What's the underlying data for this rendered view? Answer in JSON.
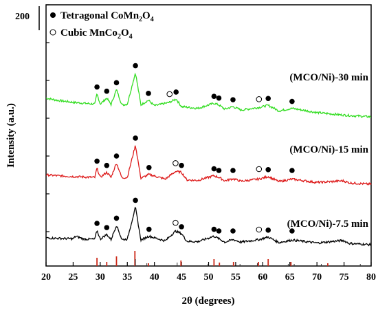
{
  "chart_data": {
    "type": "line",
    "xlabel": "2θ (degrees)",
    "ylabel": "Intensity (a.u.)",
    "xlim": [
      20,
      80
    ],
    "x_ticks": [
      20,
      25,
      30,
      35,
      40,
      45,
      50,
      55,
      60,
      65,
      70,
      75,
      80
    ],
    "scale_label": "200",
    "legend": {
      "placement": "top-left",
      "entries": [
        {
          "marker": "filled-circle",
          "name": "Tetragonal CoMn",
          "sub1": "2",
          "mid": "O",
          "sub2": "4"
        },
        {
          "marker": "open-circle",
          "name": "Cubic MnCo",
          "sub1": "2",
          "mid": "O",
          "sub2": "4"
        }
      ]
    },
    "series": [
      {
        "name": "(MCO/Ni)-30 min",
        "color": "#33dd22",
        "peaks_filled": [
          29.4,
          31.2,
          33.0,
          36.5,
          38.9,
          44.0,
          51.0,
          51.9,
          54.5,
          61.0,
          65.4
        ],
        "peaks_open": [
          42.8,
          59.3
        ],
        "points": [
          [
            20,
            180
          ],
          [
            22,
            175
          ],
          [
            25,
            170
          ],
          [
            27,
            168
          ],
          [
            29,
            166
          ],
          [
            29.4,
            190
          ],
          [
            30,
            166
          ],
          [
            31.2,
            180
          ],
          [
            32,
            165
          ],
          [
            33,
            200
          ],
          [
            34,
            164
          ],
          [
            35,
            166
          ],
          [
            36.5,
            240
          ],
          [
            37.5,
            164
          ],
          [
            38.9,
            175
          ],
          [
            40,
            162
          ],
          [
            42.8,
            170
          ],
          [
            44,
            178
          ],
          [
            45,
            160
          ],
          [
            48,
            156
          ],
          [
            51,
            168
          ],
          [
            51.9,
            164
          ],
          [
            53,
            154
          ],
          [
            54.5,
            160
          ],
          [
            56,
            152
          ],
          [
            59.3,
            158
          ],
          [
            61,
            163
          ],
          [
            63,
            150
          ],
          [
            65.4,
            156
          ],
          [
            70,
            146
          ],
          [
            75,
            140
          ],
          [
            80,
            136
          ]
        ]
      },
      {
        "name": "(MCO/Ni)-15 min",
        "color": "#dd1a1a",
        "peaks_filled": [
          29.4,
          31.2,
          33.0,
          36.5,
          39.0,
          45.0,
          51.0,
          51.9,
          54.5,
          61.0,
          65.4
        ],
        "peaks_open": [
          43.9,
          59.3
        ],
        "points": [
          [
            20,
            102
          ],
          [
            22,
            100
          ],
          [
            25,
            98
          ],
          [
            27,
            97
          ],
          [
            29,
            96
          ],
          [
            29.4,
            118
          ],
          [
            30,
            96
          ],
          [
            31.2,
            108
          ],
          [
            32,
            96
          ],
          [
            33,
            130
          ],
          [
            34,
            95
          ],
          [
            35,
            96
          ],
          [
            36.5,
            172
          ],
          [
            37.5,
            94
          ],
          [
            39,
            103
          ],
          [
            42,
            92
          ],
          [
            43.9,
            110
          ],
          [
            45,
            108
          ],
          [
            46,
            90
          ],
          [
            48,
            89
          ],
          [
            51,
            100
          ],
          [
            51.9,
            96
          ],
          [
            53,
            88
          ],
          [
            54.5,
            93
          ],
          [
            56,
            87
          ],
          [
            59.3,
            92
          ],
          [
            61,
            98
          ],
          [
            63,
            86
          ],
          [
            65.4,
            92
          ],
          [
            70,
            84
          ],
          [
            74.8,
            88
          ],
          [
            76,
            83
          ],
          [
            80,
            80
          ]
        ]
      },
      {
        "name": "(MCO/Ni)-7.5 min",
        "color": "#000000",
        "peaks_filled": [
          29.4,
          31.2,
          33.0,
          36.5,
          39.0,
          45.0,
          51.0,
          51.9,
          54.5,
          61.0,
          65.4
        ],
        "peaks_open": [
          43.9,
          59.3
        ],
        "points": [
          [
            20,
            38
          ],
          [
            22,
            37
          ],
          [
            25,
            36
          ],
          [
            25.5,
            42
          ],
          [
            27,
            35
          ],
          [
            29,
            35
          ],
          [
            29.4,
            56
          ],
          [
            30,
            35
          ],
          [
            31.2,
            46
          ],
          [
            32,
            34
          ],
          [
            33,
            68
          ],
          [
            34,
            34
          ],
          [
            35,
            35
          ],
          [
            36.5,
            110
          ],
          [
            37.5,
            33
          ],
          [
            39,
            42
          ],
          [
            42,
            31
          ],
          [
            43.9,
            54
          ],
          [
            45,
            48
          ],
          [
            46,
            30
          ],
          [
            48,
            29
          ],
          [
            51,
            42
          ],
          [
            51.9,
            36
          ],
          [
            53,
            28
          ],
          [
            54.5,
            34
          ],
          [
            56,
            28
          ],
          [
            59.3,
            34
          ],
          [
            61,
            40
          ],
          [
            63,
            27
          ],
          [
            65.4,
            33
          ],
          [
            70,
            26
          ],
          [
            74.8,
            32
          ],
          [
            76,
            25
          ],
          [
            80,
            22
          ]
        ]
      }
    ],
    "reference_sticks": {
      "red": [
        29.4,
        31.2,
        33.0,
        36.4,
        38.9,
        44.9,
        51.0,
        52.0,
        54.6,
        59.2,
        61.0,
        65.2,
        72.0
      ],
      "black": [
        36.5,
        38.6,
        44.2,
        49.9,
        55.8,
        59.0,
        64.7,
        65.8,
        70.8,
        78.0
      ]
    }
  }
}
